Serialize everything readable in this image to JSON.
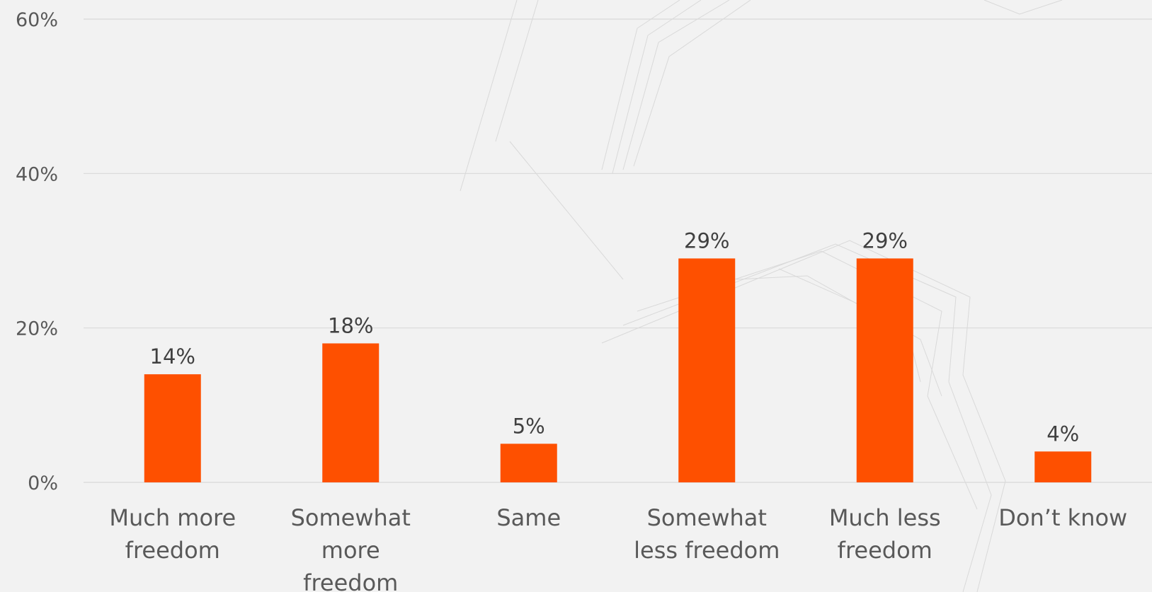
{
  "chart_data": {
    "type": "bar",
    "title": "",
    "xlabel": "",
    "ylabel": "",
    "categories": [
      [
        "Much more",
        "freedom"
      ],
      [
        "Somewhat",
        "more",
        "freedom"
      ],
      [
        "Same"
      ],
      [
        "Somewhat",
        "less freedom"
      ],
      [
        "Much less",
        "freedom"
      ],
      [
        "Don’t know"
      ]
    ],
    "values": [
      14,
      18,
      5,
      29,
      29,
      4
    ],
    "data_labels": [
      "14%",
      "18%",
      "5%",
      "29%",
      "29%",
      "4%"
    ],
    "yticks": [
      0,
      20,
      40,
      60
    ],
    "ytick_labels": [
      "0%",
      "20%",
      "40%",
      "60%"
    ],
    "ylim": [
      0,
      60
    ],
    "grid": true,
    "legend": "none",
    "colors": {
      "bar": "#fe5000",
      "grid": "#d9d9d9",
      "background": "#f2f2f2"
    }
  }
}
